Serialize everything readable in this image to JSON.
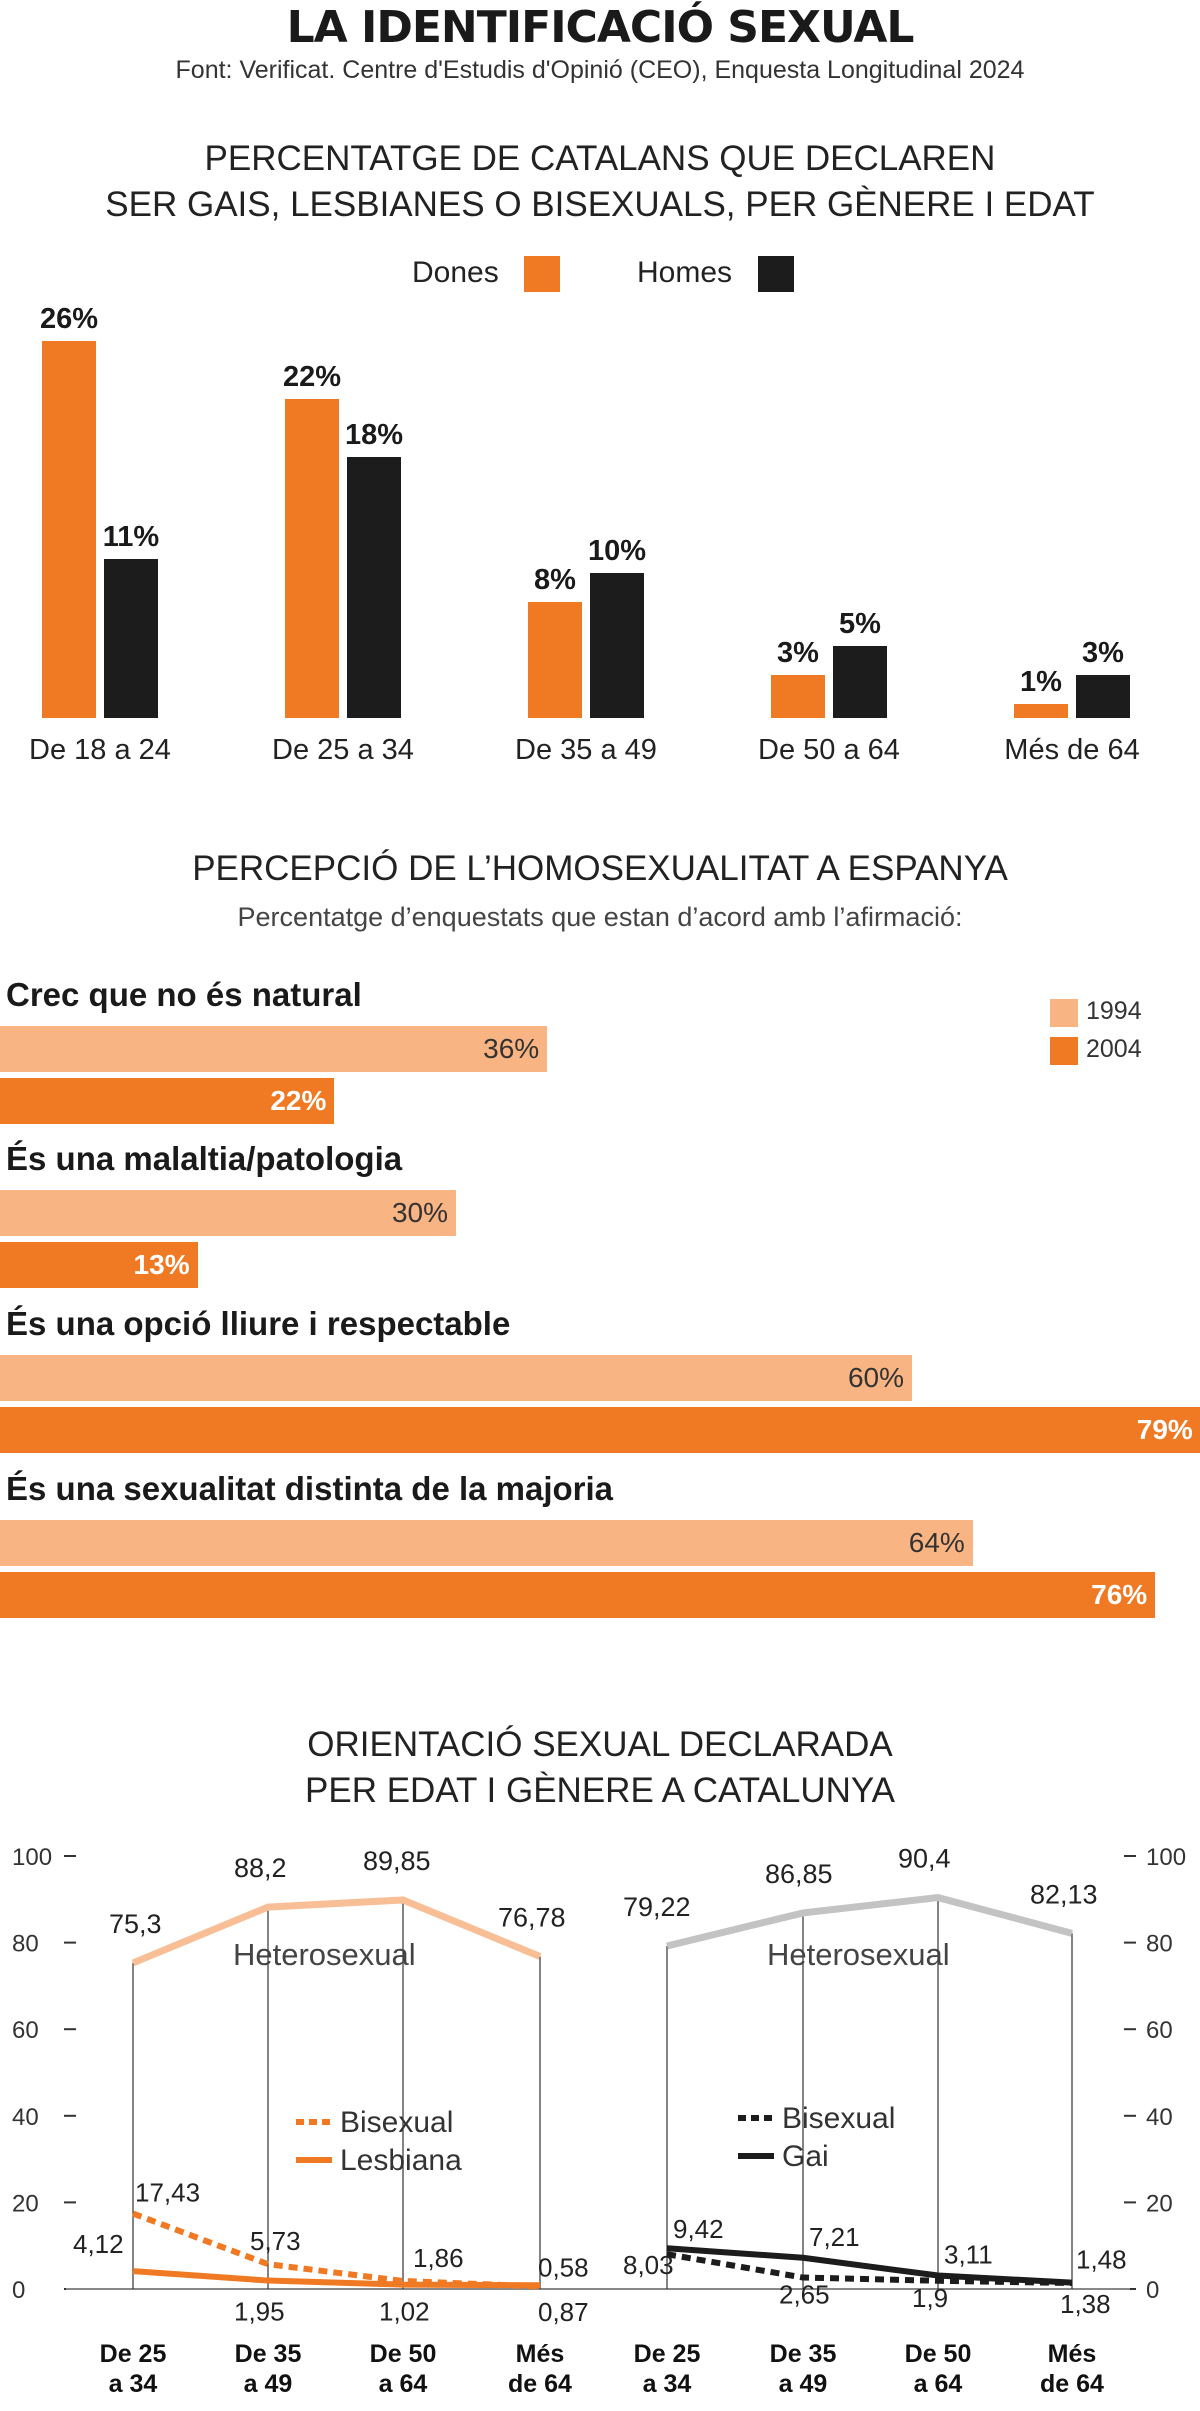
{
  "header": {
    "title": "LA IDENTIFICACIÓ SEXUAL",
    "source": "Font: Verificat. Centre d'Estudis d'Opinió (CEO), Enquesta Longitudinal 2024"
  },
  "colors": {
    "orange": "#f07a24",
    "light_orange": "#f9b483",
    "black": "#1c1c1c",
    "gray": "#c3c3c3",
    "light_peach": "#f8bf96"
  },
  "chart_data": [
    {
      "type": "bar",
      "title": "PERCENTATGE DE CATALANS QUE DECLAREN SER GAIS, LESBIANES O BISEXUALS, PER GÈNERE I EDAT",
      "title_lines": [
        "PERCENTATGE DE CATALANS QUE DECLAREN",
        "SER GAIS, LESBIANES O BISEXUALS, PER GÈNERE I EDAT"
      ],
      "categories": [
        "De 18 a 24",
        "De 25 a 34",
        "De 35 a 49",
        "De 50 a 64",
        "Més de 64"
      ],
      "series": [
        {
          "name": "Dones",
          "values": [
            26,
            22,
            8,
            3,
            1
          ],
          "labels": [
            "26%",
            "22%",
            "8%",
            "3%",
            "1%"
          ]
        },
        {
          "name": "Homes",
          "values": [
            11,
            18,
            10,
            5,
            3
          ],
          "labels": [
            "11%",
            "18%",
            "10%",
            "5%",
            "3%"
          ]
        }
      ],
      "legend": "top-center",
      "ylim": [
        0,
        26
      ]
    },
    {
      "type": "bar",
      "orientation": "horizontal",
      "title": "PERCEPCIÓ DE L’HOMOSEXUALITAT A ESPANYA",
      "subtitle": "Percentatge d’enquestats que estan d’acord amb l’afirmació:",
      "categories": [
        "Crec que no és natural",
        "És una malaltia/patologia",
        "És una opció lliure i respectable",
        "És una sexualitat distinta de la majoria"
      ],
      "series": [
        {
          "name": "1994",
          "values": [
            36,
            30,
            60,
            64
          ],
          "labels": [
            "36%",
            "30%",
            "60%",
            "64%"
          ]
        },
        {
          "name": "2004",
          "values": [
            22,
            13,
            79,
            76
          ],
          "labels": [
            "22%",
            "13%",
            "79%",
            "76%"
          ]
        }
      ],
      "legend": "top-right"
    },
    {
      "type": "line",
      "title": "ORIENTACIÓ SEXUAL DECLARADA PER EDAT I GÈNERE A CATALUNYA",
      "title_lines": [
        "ORIENTACIÓ SEXUAL DECLARADA",
        "PER EDAT I GÈNERE A CATALUNYA"
      ],
      "yticks": [
        "100",
        "80",
        "60",
        "40",
        "20",
        "0"
      ],
      "ylim": [
        0,
        100
      ],
      "categories": [
        [
          "De 25",
          "a 34"
        ],
        [
          "De 35",
          "a 49"
        ],
        [
          "De 50",
          "a 64"
        ],
        [
          "Més",
          "de 64"
        ]
      ],
      "panels": [
        {
          "area_label": "Heterosexual",
          "series": [
            {
              "name": "Heterosexual",
              "values": [
                75.3,
                88.2,
                89.85,
                76.78
              ],
              "labels": [
                "75,3",
                "88,2",
                "89,85",
                "76,78"
              ]
            },
            {
              "name": "Bisexual",
              "values": [
                17.43,
                5.73,
                1.86,
                0.58
              ],
              "labels": [
                "17,43",
                "5,73",
                "1,86",
                "0,58"
              ]
            },
            {
              "name": "Lesbiana",
              "values": [
                4.12,
                1.95,
                1.02,
                0.87
              ],
              "labels": [
                "4,12",
                "1,95",
                "1,02",
                "0,87"
              ]
            }
          ]
        },
        {
          "area_label": "Heterosexual",
          "series": [
            {
              "name": "Heterosexual",
              "values": [
                79.22,
                86.85,
                90.4,
                82.13
              ],
              "labels": [
                "79,22",
                "86,85",
                "90,4",
                "82,13"
              ]
            },
            {
              "name": "Bisexual",
              "values": [
                8.03,
                2.65,
                1.9,
                1.38
              ],
              "labels": [
                "8,03",
                "2,65",
                "1,9",
                "1,38"
              ]
            },
            {
              "name": "Gai",
              "values": [
                9.42,
                7.21,
                3.11,
                1.48
              ],
              "labels": [
                "9,42",
                "7,21",
                "3,11",
                "1,48"
              ]
            }
          ]
        }
      ]
    }
  ]
}
